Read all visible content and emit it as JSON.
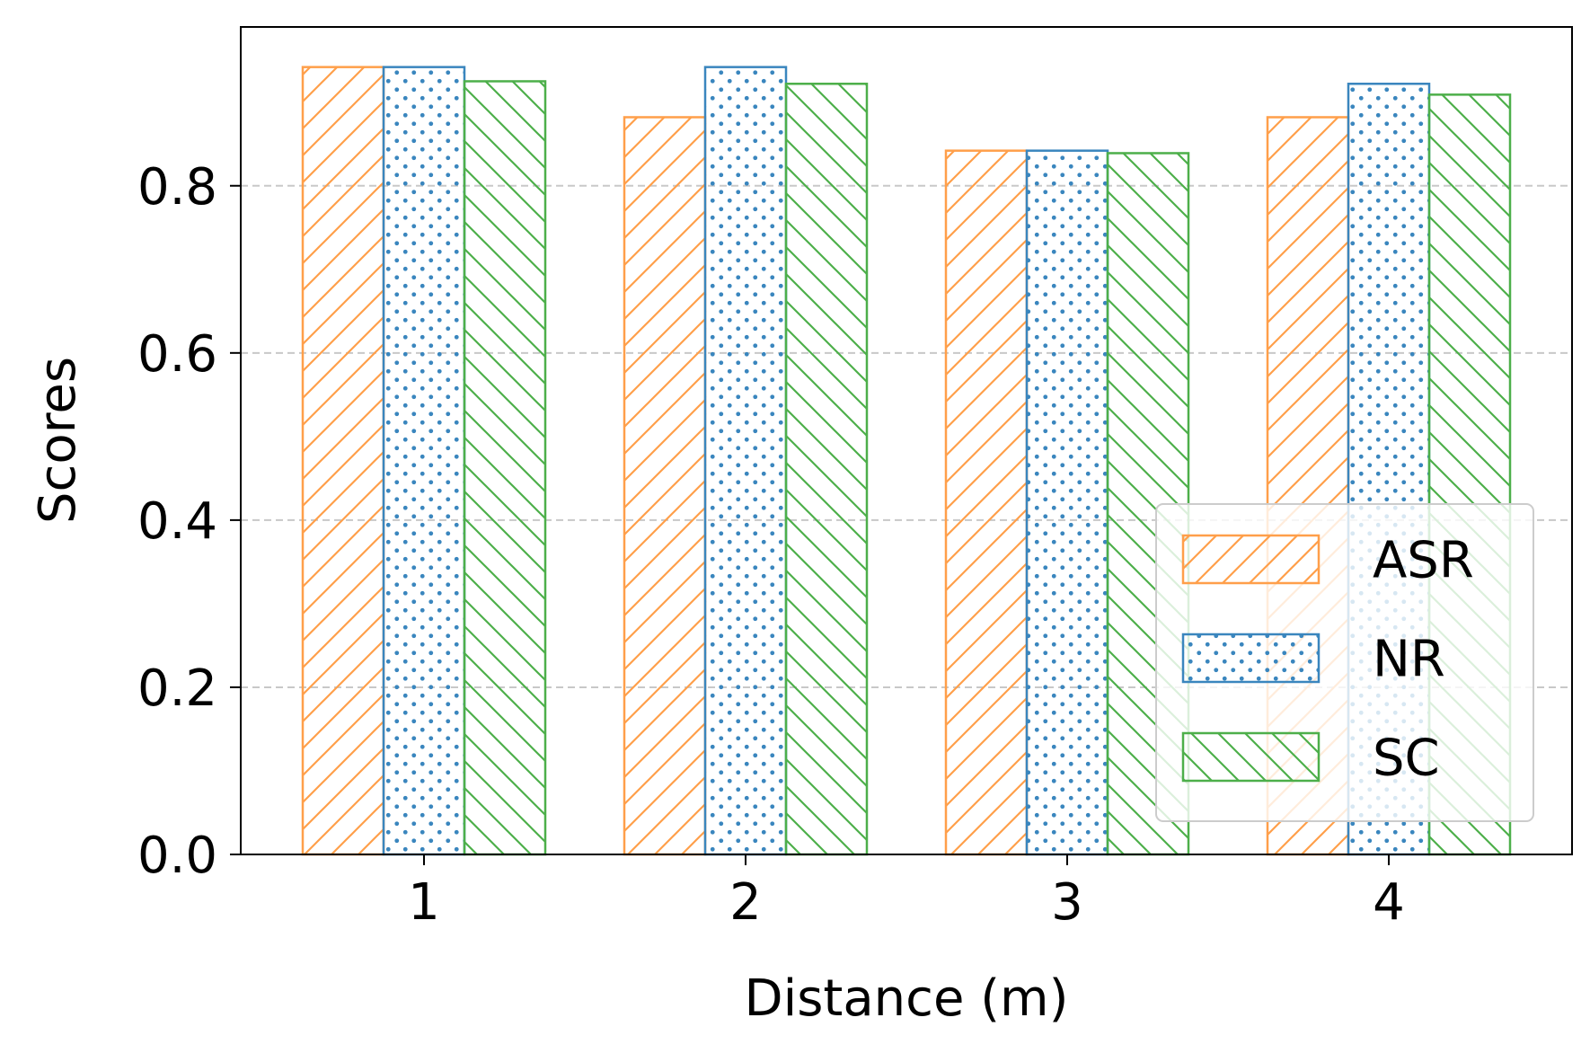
{
  "chart_data": {
    "type": "bar",
    "title": "",
    "xlabel": "Distance (m)",
    "ylabel": "Scores",
    "categories": [
      "1",
      "2",
      "3",
      "4"
    ],
    "series": [
      {
        "name": "ASR",
        "values": [
          0.942,
          0.882,
          0.842,
          0.882
        ],
        "color": "#ff9f4a",
        "pattern": "forward-hatch"
      },
      {
        "name": "NR",
        "values": [
          0.942,
          0.942,
          0.842,
          0.922
        ],
        "color": "#3a86be",
        "pattern": "dots"
      },
      {
        "name": "SC",
        "values": [
          0.925,
          0.922,
          0.839,
          0.909
        ],
        "color": "#4daf4a",
        "pattern": "back-hatch"
      }
    ],
    "ylim": [
      0,
      0.99
    ],
    "yticks": [
      "0.0",
      "0.2",
      "0.4",
      "0.6",
      "0.8"
    ],
    "grid": "horizontal-dashed",
    "legend_position": "lower-right"
  }
}
